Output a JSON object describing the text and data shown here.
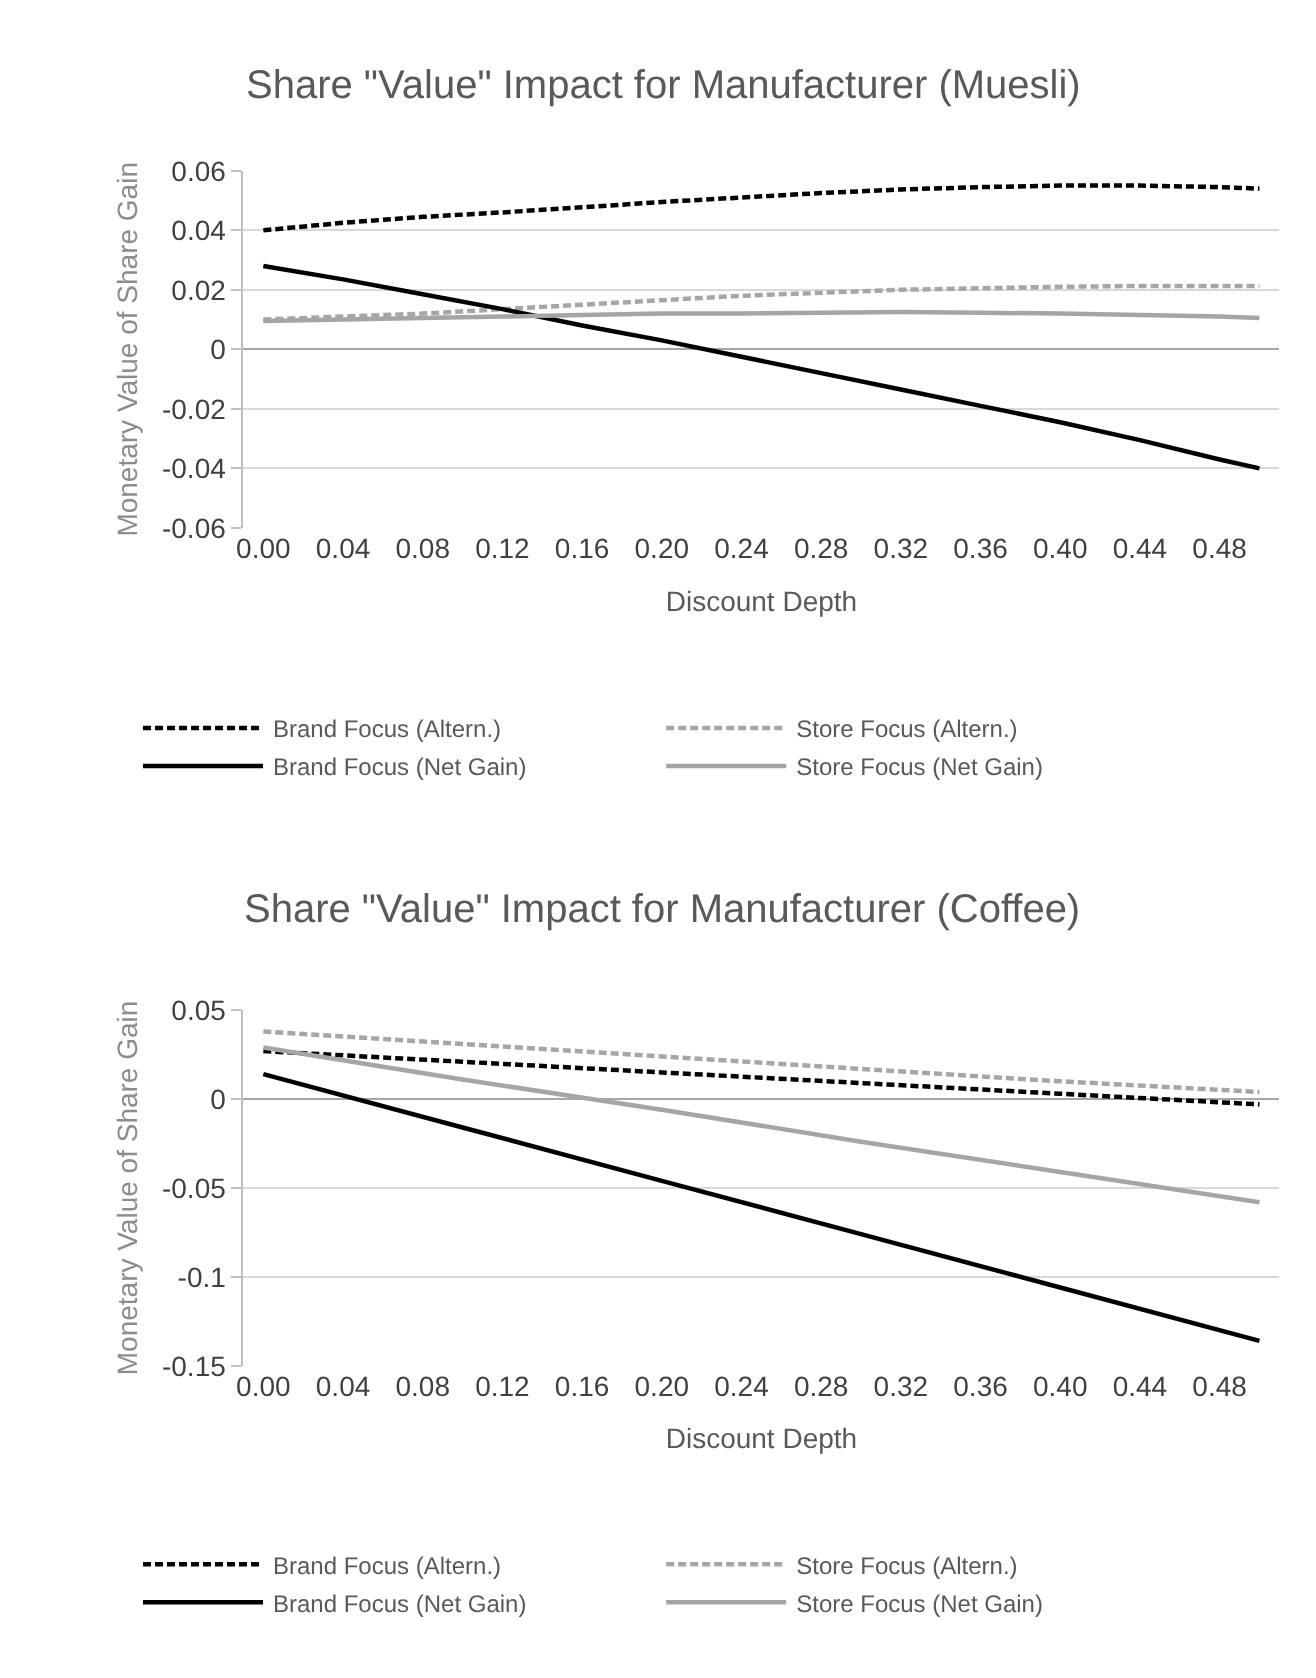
{
  "chart_data": [
    {
      "type": "line",
      "title": "Share \"Value\" Impact for Manufacturer (Muesli)",
      "xlabel": "Discount Depth",
      "ylabel": "Monetary Value of Share Gain",
      "x": [
        0,
        0.04,
        0.08,
        0.12,
        0.16,
        0.2,
        0.24,
        0.28,
        0.32,
        0.36,
        0.4,
        0.44,
        0.48,
        0.5
      ],
      "xlim": [
        -0.01,
        0.51
      ],
      "xticks": [
        {
          "value": 0,
          "label": "0.00"
        },
        {
          "value": 0.04,
          "label": "0.04"
        },
        {
          "value": 0.08,
          "label": "0.08"
        },
        {
          "value": 0.12,
          "label": "0.12"
        },
        {
          "value": 0.16,
          "label": "0.16"
        },
        {
          "value": 0.2,
          "label": "0.20"
        },
        {
          "value": 0.24,
          "label": "0.24"
        },
        {
          "value": 0.28,
          "label": "0.28"
        },
        {
          "value": 0.32,
          "label": "0.32"
        },
        {
          "value": 0.36,
          "label": "0.36"
        },
        {
          "value": 0.4,
          "label": "0.40"
        },
        {
          "value": 0.44,
          "label": "0.44"
        },
        {
          "value": 0.48,
          "label": "0.48"
        }
      ],
      "ylim": [
        -0.06,
        0.06
      ],
      "yticks": [
        -0.06,
        -0.04,
        -0.02,
        0,
        0.02,
        0.04,
        0.06
      ],
      "grid": "y",
      "legend": "bottom",
      "marker": "none",
      "series": [
        {
          "name": "Brand Focus (Altern.)",
          "color": "#000000",
          "line_style": "dashed",
          "values": [
            0.04,
            0.0425,
            0.0445,
            0.046,
            0.0477,
            0.0495,
            0.051,
            0.0525,
            0.0537,
            0.0545,
            0.055,
            0.055,
            0.0545,
            0.054
          ]
        },
        {
          "name": "Store Focus (Altern.)",
          "color": "#a6a6a6",
          "line_style": "dashed",
          "values": [
            0.01,
            0.011,
            0.012,
            0.0135,
            0.015,
            0.0165,
            0.018,
            0.019,
            0.02,
            0.0205,
            0.021,
            0.0213,
            0.0213,
            0.0213
          ]
        },
        {
          "name": "Brand Focus (Net Gain)",
          "color": "#000000",
          "line_style": "solid",
          "values": [
            0.028,
            0.0235,
            0.0185,
            0.0135,
            0.008,
            0.003,
            -0.0025,
            -0.008,
            -0.0135,
            -0.019,
            -0.0245,
            -0.0305,
            -0.037,
            -0.04
          ]
        },
        {
          "name": "Store Focus (Net Gain)",
          "color": "#a5a5a5",
          "line_style": "solid",
          "values": [
            0.0095,
            0.01,
            0.0105,
            0.011,
            0.0115,
            0.012,
            0.012,
            0.0123,
            0.0125,
            0.0123,
            0.012,
            0.0115,
            0.011,
            0.0105
          ]
        }
      ]
    },
    {
      "type": "line",
      "title": "Share \"Value\" Impact for Manufacturer (Coffee)",
      "xlabel": "Discount Depth",
      "ylabel": "Monetary Value of Share Gain",
      "x": [
        0,
        0.1,
        0.2,
        0.3,
        0.4,
        0.5
      ],
      "xlim": [
        -0.01,
        0.51
      ],
      "xticks": [
        {
          "value": 0,
          "label": "0.00"
        },
        {
          "value": 0.04,
          "label": "0.04"
        },
        {
          "value": 0.08,
          "label": "0.08"
        },
        {
          "value": 0.12,
          "label": "0.12"
        },
        {
          "value": 0.16,
          "label": "0.16"
        },
        {
          "value": 0.2,
          "label": "0.20"
        },
        {
          "value": 0.24,
          "label": "0.24"
        },
        {
          "value": 0.28,
          "label": "0.28"
        },
        {
          "value": 0.32,
          "label": "0.32"
        },
        {
          "value": 0.36,
          "label": "0.36"
        },
        {
          "value": 0.4,
          "label": "0.40"
        },
        {
          "value": 0.44,
          "label": "0.44"
        },
        {
          "value": 0.48,
          "label": "0.48"
        }
      ],
      "ylim": [
        -0.15,
        0.05
      ],
      "yticks": [
        -0.15,
        -0.1,
        -0.05,
        0,
        0.05
      ],
      "grid": "y",
      "legend": "bottom",
      "marker": "none",
      "series": [
        {
          "name": "Brand Focus (Altern.)",
          "color": "#000000",
          "line_style": "dashed",
          "values": [
            0.027,
            0.021,
            0.015,
            0.009,
            0.003,
            -0.003
          ]
        },
        {
          "name": "Store Focus (Altern.)",
          "color": "#a6a6a6",
          "line_style": "dashed",
          "values": [
            0.038,
            0.031,
            0.024,
            0.017,
            0.01,
            0.004
          ]
        },
        {
          "name": "Brand Focus (Net Gain)",
          "color": "#000000",
          "line_style": "solid",
          "values": [
            0.014,
            -0.016,
            -0.046,
            -0.076,
            -0.106,
            -0.136
          ]
        },
        {
          "name": "Store Focus (Net Gain)",
          "color": "#a5a5a5",
          "line_style": "solid",
          "values": [
            0.029,
            0.011,
            -0.006,
            -0.024,
            -0.041,
            -0.058
          ]
        }
      ]
    }
  ]
}
